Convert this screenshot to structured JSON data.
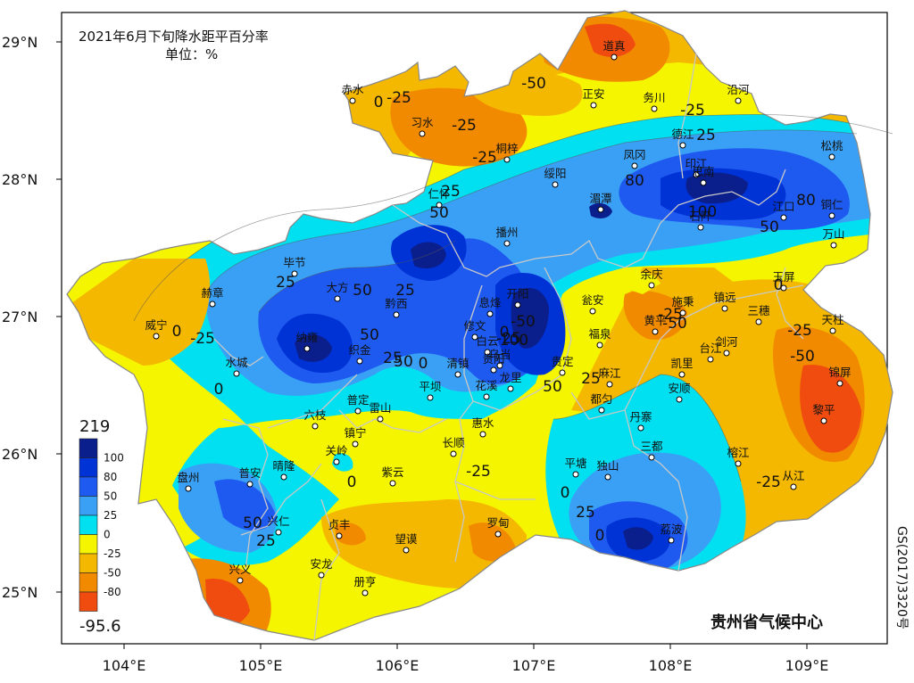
{
  "title": "2021年6月下旬降水距平百分率",
  "unit": "单位：%",
  "credit": "贵州省气候中心",
  "approval": "GS(2017)3320号",
  "axes": {
    "lat": [
      "29°N",
      "28°N",
      "27°N",
      "26°N",
      "25°N"
    ],
    "lon": [
      "104°E",
      "105°E",
      "106°E",
      "107°E",
      "108°E",
      "109°E"
    ]
  },
  "legend": {
    "max": "219",
    "min": "-95.6",
    "ticks": [
      "100",
      "80",
      "50",
      "25",
      "0",
      "-25",
      "-50",
      "-80"
    ],
    "colors": [
      "#0b1f8c",
      "#0033d6",
      "#1e5af0",
      "#3aa0f5",
      "#00e0f0",
      "#f5f500",
      "#f5b800",
      "#f28a00",
      "#f04c10"
    ]
  },
  "cities": [
    {
      "name": "道真"
    },
    {
      "name": "赤水"
    },
    {
      "name": "正安"
    },
    {
      "name": "务川"
    },
    {
      "name": "沿河"
    },
    {
      "name": "习水"
    },
    {
      "name": "桐梓"
    },
    {
      "name": "德江"
    },
    {
      "name": "绥阳"
    },
    {
      "name": "凤冈"
    },
    {
      "name": "印江"
    },
    {
      "name": "松桃"
    },
    {
      "name": "思南"
    },
    {
      "name": "湄潭"
    },
    {
      "name": "仁怀"
    },
    {
      "name": "江口"
    },
    {
      "name": "铜仁"
    },
    {
      "name": "播州"
    },
    {
      "name": "石阡"
    },
    {
      "name": "万山"
    },
    {
      "name": "毕节"
    },
    {
      "name": "大方"
    },
    {
      "name": "余庆"
    },
    {
      "name": "玉屏"
    },
    {
      "name": "赫章"
    },
    {
      "name": "黔西"
    },
    {
      "name": "息烽"
    },
    {
      "name": "开阳"
    },
    {
      "name": "瓮安"
    },
    {
      "name": "施秉"
    },
    {
      "name": "镇远"
    },
    {
      "name": "三穗"
    },
    {
      "name": "威宁"
    },
    {
      "name": "纳雍"
    },
    {
      "name": "织金"
    },
    {
      "name": "修文"
    },
    {
      "name": "白云"
    },
    {
      "name": "黄平"
    },
    {
      "name": "天柱"
    },
    {
      "name": "乌当"
    },
    {
      "name": "福泉"
    },
    {
      "name": "剑河"
    },
    {
      "name": "水城"
    },
    {
      "name": "清镇"
    },
    {
      "name": "贵阳"
    },
    {
      "name": "贵定"
    },
    {
      "name": "凯里"
    },
    {
      "name": "台江"
    },
    {
      "name": "锦屏"
    },
    {
      "name": "花溪"
    },
    {
      "name": "龙里"
    },
    {
      "name": "麻江"
    },
    {
      "name": "平坝"
    },
    {
      "name": "普定"
    },
    {
      "name": "雷山"
    },
    {
      "name": "安顺"
    },
    {
      "name": "都匀"
    },
    {
      "name": "六枝"
    },
    {
      "name": "黎平"
    },
    {
      "name": "丹寨"
    },
    {
      "name": "惠水"
    },
    {
      "name": "镇宁"
    },
    {
      "name": "长顺"
    },
    {
      "name": "三都"
    },
    {
      "name": "关岭"
    },
    {
      "name": "榕江"
    },
    {
      "name": "平塘"
    },
    {
      "name": "独山"
    },
    {
      "name": "盘州"
    },
    {
      "name": "普安"
    },
    {
      "name": "晴隆"
    },
    {
      "name": "紫云"
    },
    {
      "name": "从江"
    },
    {
      "name": "兴仁"
    },
    {
      "name": "贞丰"
    },
    {
      "name": "罗甸"
    },
    {
      "name": "荔波"
    },
    {
      "name": "望谟"
    },
    {
      "name": "兴义"
    },
    {
      "name": "安龙"
    },
    {
      "name": "册亨"
    }
  ],
  "contour_labels": [
    "-25",
    "0",
    "-50",
    "-25",
    "-25",
    "25",
    "50",
    "-25",
    "25",
    "80",
    "100",
    "50",
    "80",
    "0",
    "25",
    "50",
    "25",
    "0",
    "-25",
    "-25",
    "0",
    "-50",
    "-25",
    "-50",
    "25",
    "0",
    "50",
    "25",
    "50",
    "50",
    "-25",
    "-50",
    "0",
    "0",
    "-25",
    "0",
    "25",
    "50",
    "100",
    "0",
    "25",
    "-25"
  ]
}
